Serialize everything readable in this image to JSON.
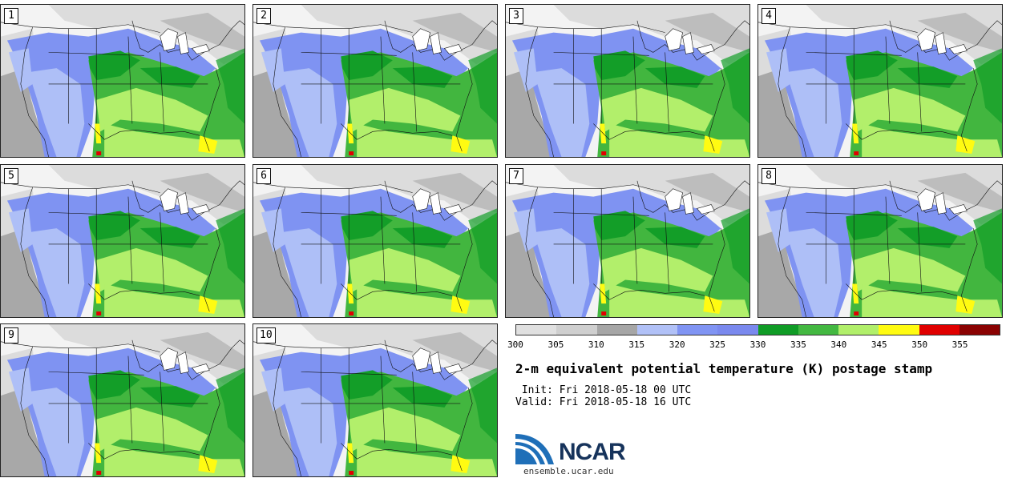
{
  "title": "2-m equivalent potential temperature (K) postage stamp",
  "init": " Init: Fri 2018-05-18 00 UTC",
  "valid": "Valid: Fri 2018-05-18 16 UTC",
  "logo_text": "NCAR",
  "site": "ensemble.ucar.edu",
  "members": [
    "1",
    "2",
    "3",
    "4",
    "5",
    "6",
    "7",
    "8",
    "9",
    "10"
  ],
  "colorbar": {
    "colors": [
      "#e0e0e0",
      "#cfcfcf",
      "#a6a6a6",
      "#b1c1f7",
      "#8094f3",
      "#7a89ee",
      "#109c26",
      "#43b841",
      "#b1ef6a",
      "#fffb11",
      "#e00000",
      "#8a0202"
    ],
    "ticks": [
      "300",
      "305",
      "310",
      "315",
      "320",
      "325",
      "330",
      "335",
      "340",
      "345",
      "350",
      "355"
    ]
  },
  "map_colors": {
    "ocean": "#f3f3f3",
    "gray_light": "#dcdcdc",
    "gray_mid": "#a8a8a8",
    "blue_light": "#aebff7",
    "blue": "#7f93f2",
    "green_dark": "#139e28",
    "green": "#42b63f",
    "green_light": "#b2ef6b",
    "yellow": "#fffb12",
    "red": "#e00000"
  }
}
